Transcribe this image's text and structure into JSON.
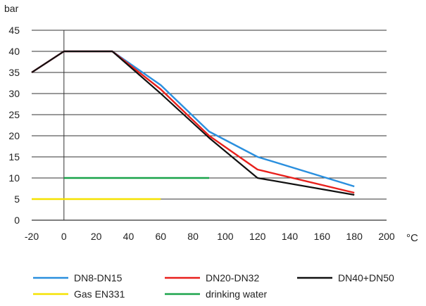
{
  "chart_data": {
    "type": "line",
    "title": "",
    "ylabel": "bar",
    "xlabel": "°C",
    "xlim": [
      -20,
      200
    ],
    "ylim": [
      0,
      45
    ],
    "xticks": [
      -20,
      0,
      20,
      40,
      60,
      80,
      100,
      120,
      140,
      160,
      180,
      200
    ],
    "yticks": [
      0,
      5,
      10,
      15,
      20,
      25,
      30,
      35,
      40,
      45
    ],
    "grid": "horizontal",
    "legend_position": "bottom",
    "series": [
      {
        "name": "DN8-DN15",
        "color": "#2a8fde",
        "x": [
          -20,
          0,
          30,
          60,
          90,
          120,
          180
        ],
        "y": [
          35,
          40,
          40,
          32,
          21,
          15,
          8
        ]
      },
      {
        "name": "DN20-DN32",
        "color": "#e8201c",
        "x": [
          -20,
          0,
          30,
          60,
          90,
          120,
          180
        ],
        "y": [
          35,
          40,
          40,
          31,
          20,
          12,
          6.5
        ]
      },
      {
        "name": "DN40+DN50",
        "color": "#111111",
        "x": [
          -20,
          0,
          30,
          60,
          90,
          120,
          180
        ],
        "y": [
          35,
          40,
          40,
          30,
          19.5,
          10,
          6
        ]
      },
      {
        "name": "Gas EN331",
        "color": "#f5e200",
        "x": [
          -20,
          60
        ],
        "y": [
          5,
          5
        ]
      },
      {
        "name": "drinking water",
        "color": "#1aa34a",
        "x": [
          0,
          90
        ],
        "y": [
          10,
          10
        ]
      }
    ]
  }
}
